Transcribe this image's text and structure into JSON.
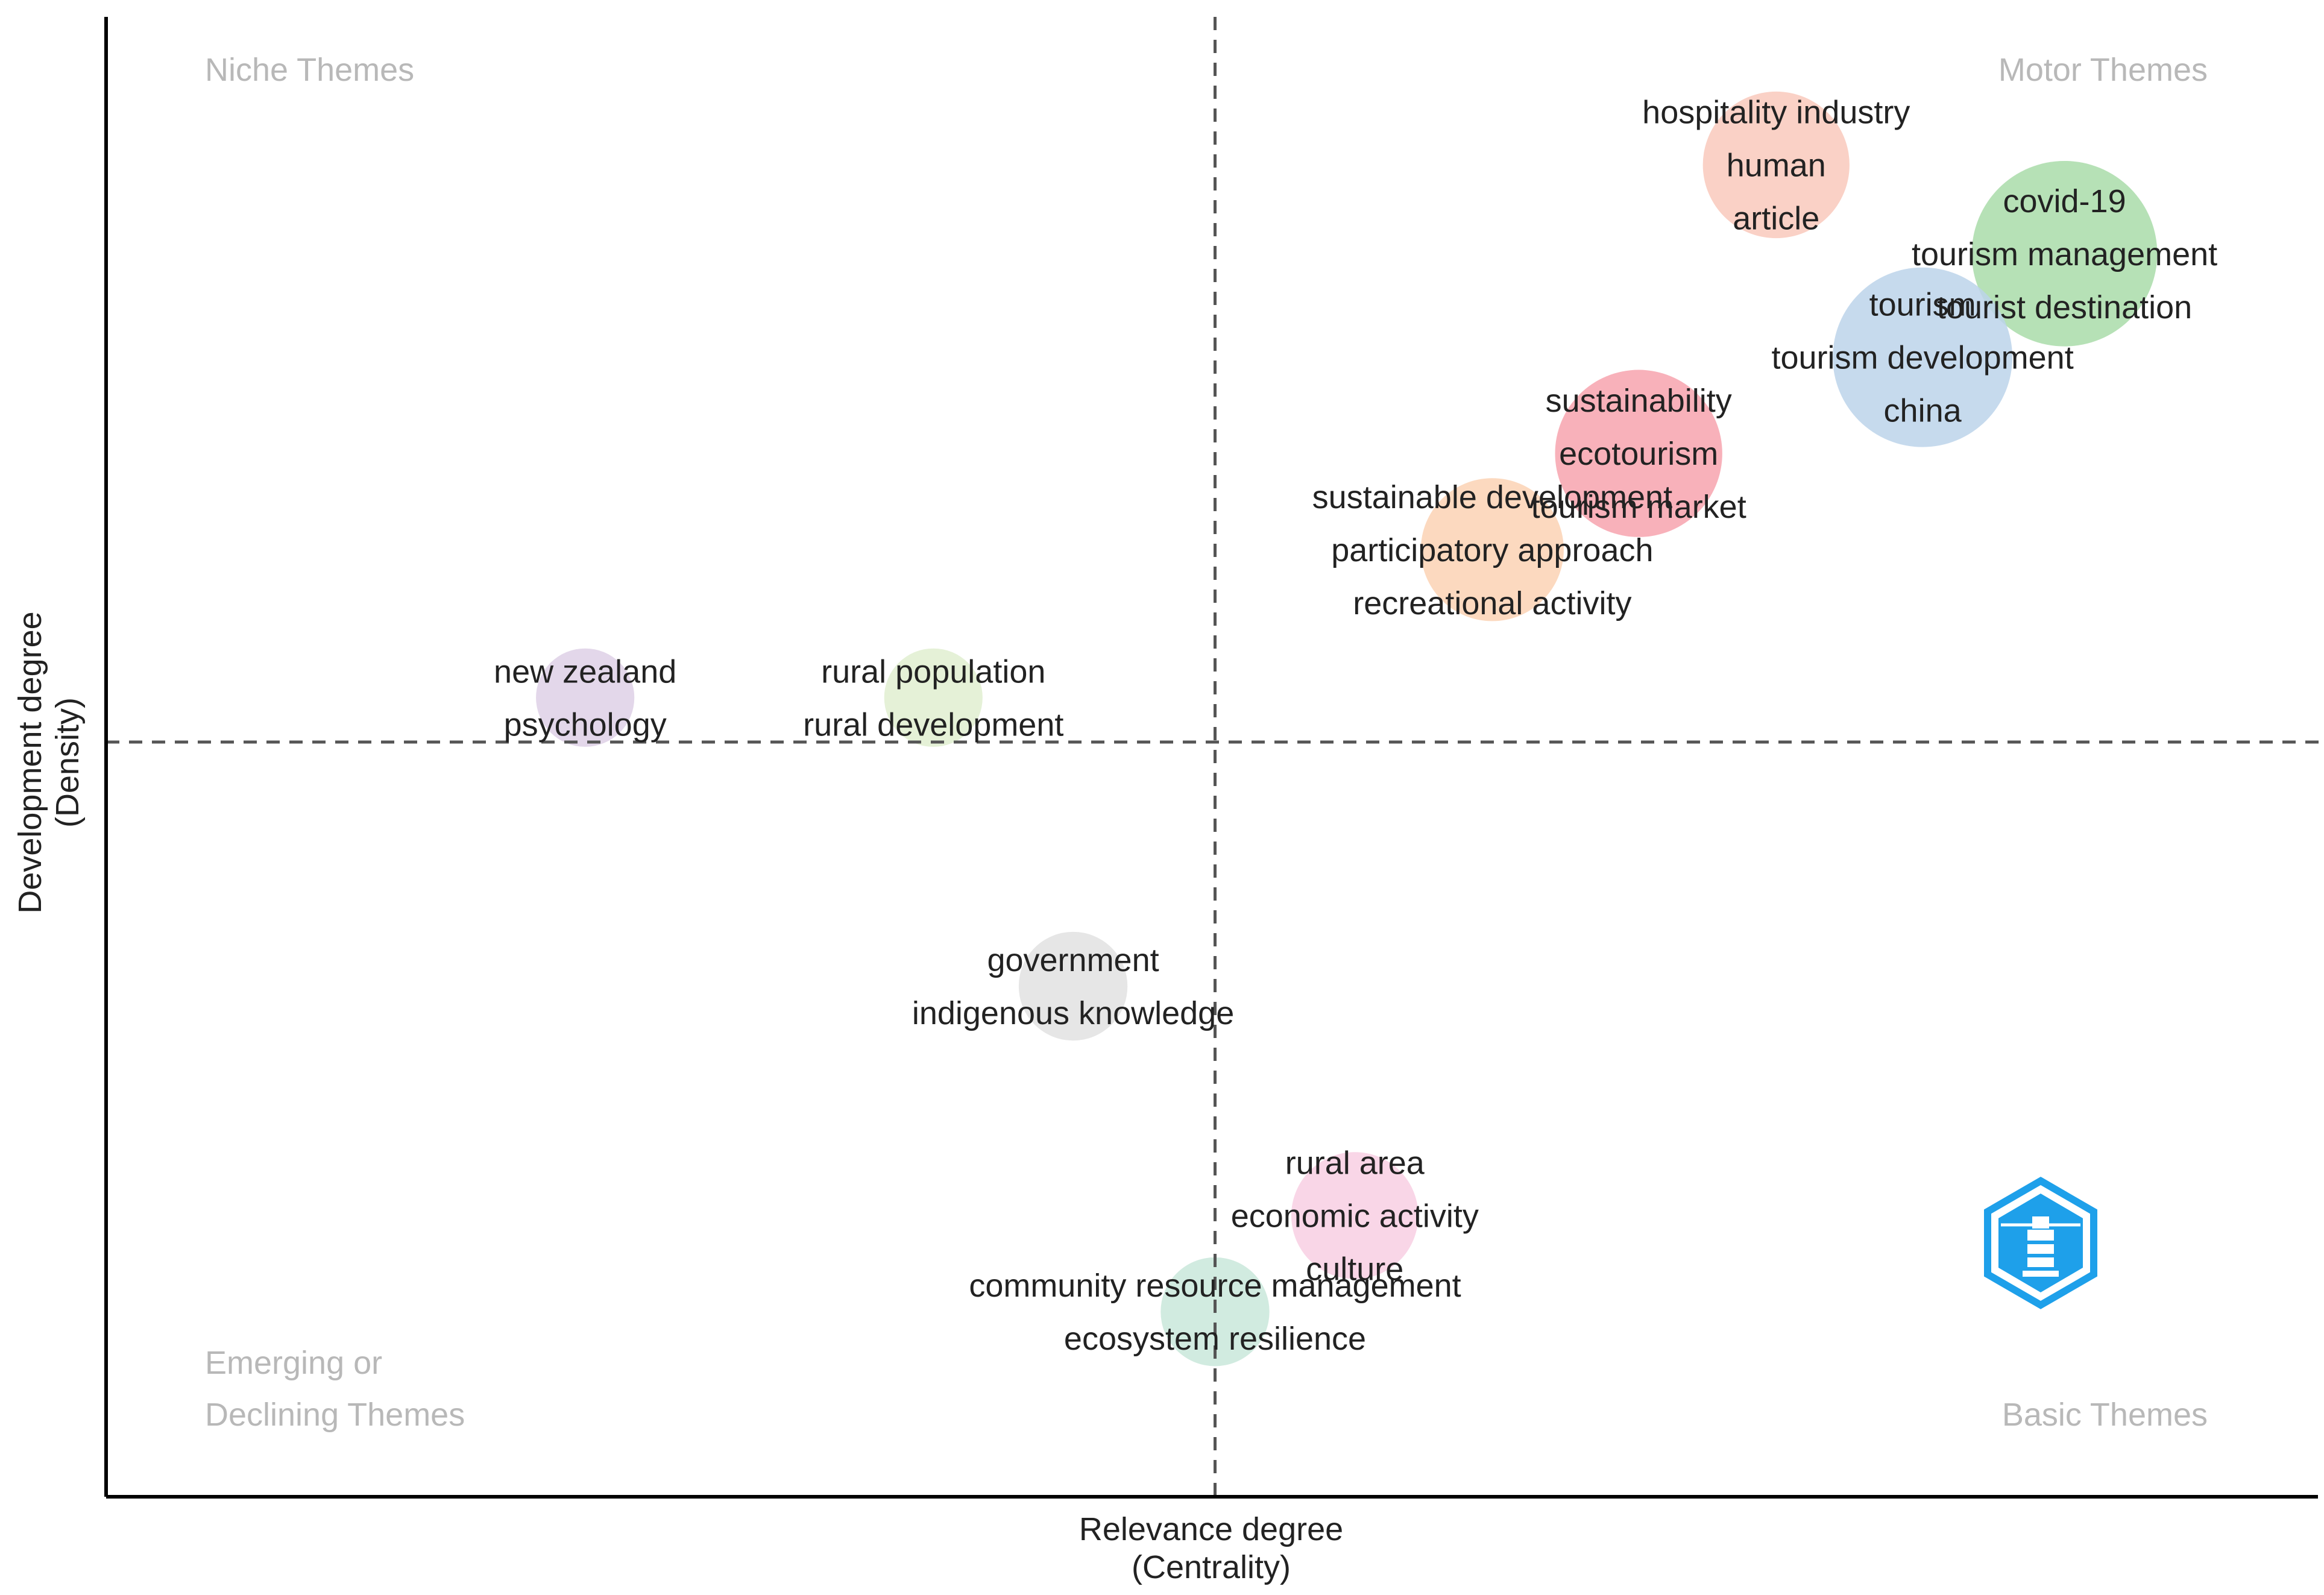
{
  "colors": {
    "quadrant_label": "#b8b8b8",
    "axis": "#000000",
    "reference_line": "#555555",
    "label_text": "#222222",
    "logo_blue": "#1ea0ea"
  },
  "chart_data": {
    "type": "scatter",
    "title": "",
    "xlabel": [
      "Relevance degree",
      "(Centrality)"
    ],
    "ylabel": [
      "Development degree",
      "(Density)"
    ],
    "xlim": [
      0,
      100
    ],
    "ylim": [
      0,
      100
    ],
    "grid": false,
    "reference_lines": {
      "x": 50,
      "y": 51
    },
    "quadrants": {
      "top_left": [
        "Niche Themes"
      ],
      "top_right": [
        "Motor Themes"
      ],
      "bottom_left": [
        "Emerging or",
        "Declining Themes"
      ],
      "bottom_right": [
        "Basic Themes"
      ]
    },
    "clusters": [
      {
        "name": "hospitality industry",
        "x": 75.3,
        "y": 90.0,
        "size": 2.0,
        "color": "#f9c9bc",
        "labels": [
          "hospitality industry",
          "human",
          "article"
        ]
      },
      {
        "name": "covid-19",
        "x": 88.3,
        "y": 84.0,
        "size": 3.2,
        "color": "#a9dca9",
        "labels": [
          "covid-19",
          "tourism management",
          "tourist destination"
        ]
      },
      {
        "name": "tourism",
        "x": 81.9,
        "y": 77.0,
        "size": 3.0,
        "color": "#bcd3ea",
        "labels": [
          "tourism",
          "tourism development",
          "china"
        ]
      },
      {
        "name": "sustainability",
        "x": 69.1,
        "y": 70.5,
        "size": 2.6,
        "color": "#f7a3ae",
        "labels": [
          "sustainability",
          "ecotourism",
          "tourism market"
        ]
      },
      {
        "name": "sustainable development",
        "x": 62.5,
        "y": 64.0,
        "size": 1.9,
        "color": "#fcd2b4",
        "labels": [
          "sustainable development",
          "participatory approach",
          "recreational activity"
        ]
      },
      {
        "name": "new zealand",
        "x": 21.6,
        "y": 54.0,
        "size": 0.9,
        "color": "#ded0e6",
        "labels": [
          "new zealand",
          "psychology"
        ]
      },
      {
        "name": "rural population",
        "x": 37.3,
        "y": 54.0,
        "size": 0.9,
        "color": "#e0efd0",
        "labels": [
          "rural population",
          "rural development"
        ]
      },
      {
        "name": "government",
        "x": 43.6,
        "y": 34.5,
        "size": 1.1,
        "color": "#e2e2e2",
        "labels": [
          "government",
          "indigenous knowledge"
        ]
      },
      {
        "name": "rural area",
        "x": 56.3,
        "y": 19.0,
        "size": 1.5,
        "color": "#f8cfe3",
        "labels": [
          "rural area",
          "economic activity",
          "culture"
        ]
      },
      {
        "name": "community resource management",
        "x": 50.0,
        "y": 12.5,
        "size": 1.1,
        "color": "#c9e8da",
        "labels": [
          "community resource management",
          "ecosystem resilience"
        ]
      }
    ]
  },
  "logo": {
    "name": "hexagon-logo"
  }
}
